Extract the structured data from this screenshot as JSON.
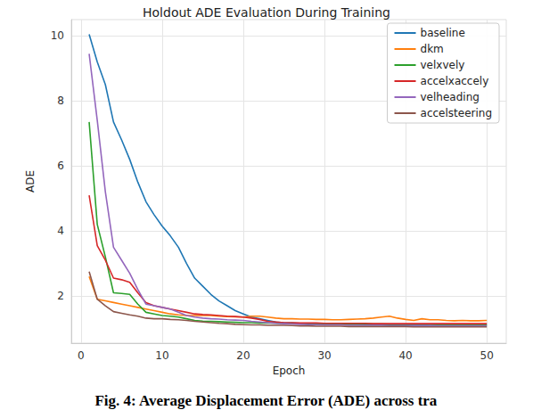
{
  "chart_data": {
    "type": "line",
    "title": "Holdout ADE Evaluation During Training",
    "caption": "Fig. 4: Average Displacement Error (ADE) across tra",
    "x_label": "Epoch",
    "y_label": "ADE",
    "x": [
      1,
      2,
      3,
      4,
      5,
      6,
      7,
      8,
      9,
      10,
      11,
      12,
      13,
      14,
      15,
      16,
      17,
      18,
      19,
      20,
      21,
      22,
      23,
      24,
      25,
      26,
      27,
      28,
      29,
      30,
      31,
      32,
      33,
      34,
      35,
      36,
      37,
      38,
      39,
      40,
      41,
      42,
      43,
      44,
      45,
      46,
      47,
      48,
      49,
      50
    ],
    "series": [
      {
        "name": "baseline",
        "color": "#1f77b4",
        "values": [
          10.05,
          9.2,
          8.5,
          7.35,
          6.8,
          6.2,
          5.5,
          4.9,
          4.5,
          4.15,
          3.85,
          3.5,
          3.0,
          2.55,
          2.3,
          2.05,
          1.85,
          1.7,
          1.55,
          1.45,
          1.35,
          1.3,
          1.25,
          1.2,
          1.18,
          1.17,
          1.16,
          1.15,
          1.15,
          1.14,
          1.14,
          1.13,
          1.13,
          1.13,
          1.12,
          1.12,
          1.12,
          1.12,
          1.11,
          1.11,
          1.11,
          1.11,
          1.1,
          1.1,
          1.1,
          1.1,
          1.1,
          1.1,
          1.1,
          1.1
        ]
      },
      {
        "name": "dkm",
        "color": "#ff7f0e",
        "values": [
          2.6,
          1.9,
          1.85,
          1.8,
          1.75,
          1.7,
          1.65,
          1.6,
          1.55,
          1.5,
          1.45,
          1.42,
          1.4,
          1.4,
          1.4,
          1.4,
          1.38,
          1.37,
          1.36,
          1.35,
          1.38,
          1.38,
          1.35,
          1.32,
          1.3,
          1.3,
          1.29,
          1.29,
          1.28,
          1.28,
          1.27,
          1.27,
          1.28,
          1.29,
          1.3,
          1.32,
          1.35,
          1.38,
          1.32,
          1.28,
          1.25,
          1.3,
          1.27,
          1.27,
          1.25,
          1.24,
          1.25,
          1.24,
          1.24,
          1.25
        ]
      },
      {
        "name": "velxvely",
        "color": "#2ca02c",
        "values": [
          7.35,
          4.2,
          3.2,
          2.1,
          2.08,
          2.05,
          1.75,
          1.5,
          1.45,
          1.4,
          1.38,
          1.35,
          1.3,
          1.25,
          1.23,
          1.22,
          1.21,
          1.2,
          1.19,
          1.18,
          1.18,
          1.17,
          1.17,
          1.17,
          1.16,
          1.16,
          1.16,
          1.16,
          1.15,
          1.15,
          1.15,
          1.15,
          1.14,
          1.14,
          1.14,
          1.14,
          1.14,
          1.13,
          1.13,
          1.13,
          1.13,
          1.13,
          1.13,
          1.12,
          1.12,
          1.12,
          1.12,
          1.12,
          1.12,
          1.12
        ]
      },
      {
        "name": "accelxaccely",
        "color": "#d62728",
        "values": [
          5.1,
          3.55,
          3.1,
          2.55,
          2.5,
          2.42,
          2.1,
          1.8,
          1.7,
          1.65,
          1.6,
          1.55,
          1.5,
          1.45,
          1.43,
          1.42,
          1.4,
          1.38,
          1.37,
          1.35,
          1.32,
          1.28,
          1.22,
          1.2,
          1.18,
          1.18,
          1.17,
          1.17,
          1.17,
          1.16,
          1.16,
          1.16,
          1.16,
          1.16,
          1.16,
          1.15,
          1.15,
          1.15,
          1.15,
          1.15,
          1.15,
          1.15,
          1.15,
          1.15,
          1.15,
          1.15,
          1.15,
          1.15,
          1.15,
          1.15
        ]
      },
      {
        "name": "velheading",
        "color": "#9467bd",
        "values": [
          9.45,
          7.4,
          5.2,
          3.5,
          3.1,
          2.7,
          2.2,
          1.75,
          1.7,
          1.65,
          1.6,
          1.5,
          1.4,
          1.35,
          1.32,
          1.3,
          1.29,
          1.27,
          1.26,
          1.25,
          1.22,
          1.2,
          1.18,
          1.16,
          1.15,
          1.14,
          1.13,
          1.12,
          1.12,
          1.11,
          1.11,
          1.11,
          1.1,
          1.1,
          1.1,
          1.1,
          1.1,
          1.09,
          1.09,
          1.09,
          1.09,
          1.09,
          1.09,
          1.08,
          1.08,
          1.08,
          1.08,
          1.08,
          1.08,
          1.08
        ]
      },
      {
        "name": "accelsteering",
        "color": "#8c564b",
        "values": [
          2.75,
          1.9,
          1.7,
          1.52,
          1.47,
          1.42,
          1.38,
          1.32,
          1.3,
          1.3,
          1.28,
          1.27,
          1.25,
          1.22,
          1.2,
          1.18,
          1.16,
          1.15,
          1.13,
          1.12,
          1.11,
          1.11,
          1.1,
          1.1,
          1.1,
          1.09,
          1.08,
          1.08,
          1.07,
          1.07,
          1.07,
          1.07,
          1.06,
          1.06,
          1.06,
          1.06,
          1.06,
          1.06,
          1.06,
          1.06,
          1.05,
          1.05,
          1.05,
          1.05,
          1.05,
          1.05,
          1.05,
          1.05,
          1.05,
          1.05
        ]
      }
    ],
    "xlim": [
      -1.2,
      52.4
    ],
    "xticks": [
      0,
      10,
      20,
      30,
      40,
      50
    ],
    "ylim": [
      0.55,
      10.5
    ],
    "yticks": [
      2,
      4,
      6,
      8,
      10
    ],
    "grid": true,
    "legend": "top-right"
  }
}
